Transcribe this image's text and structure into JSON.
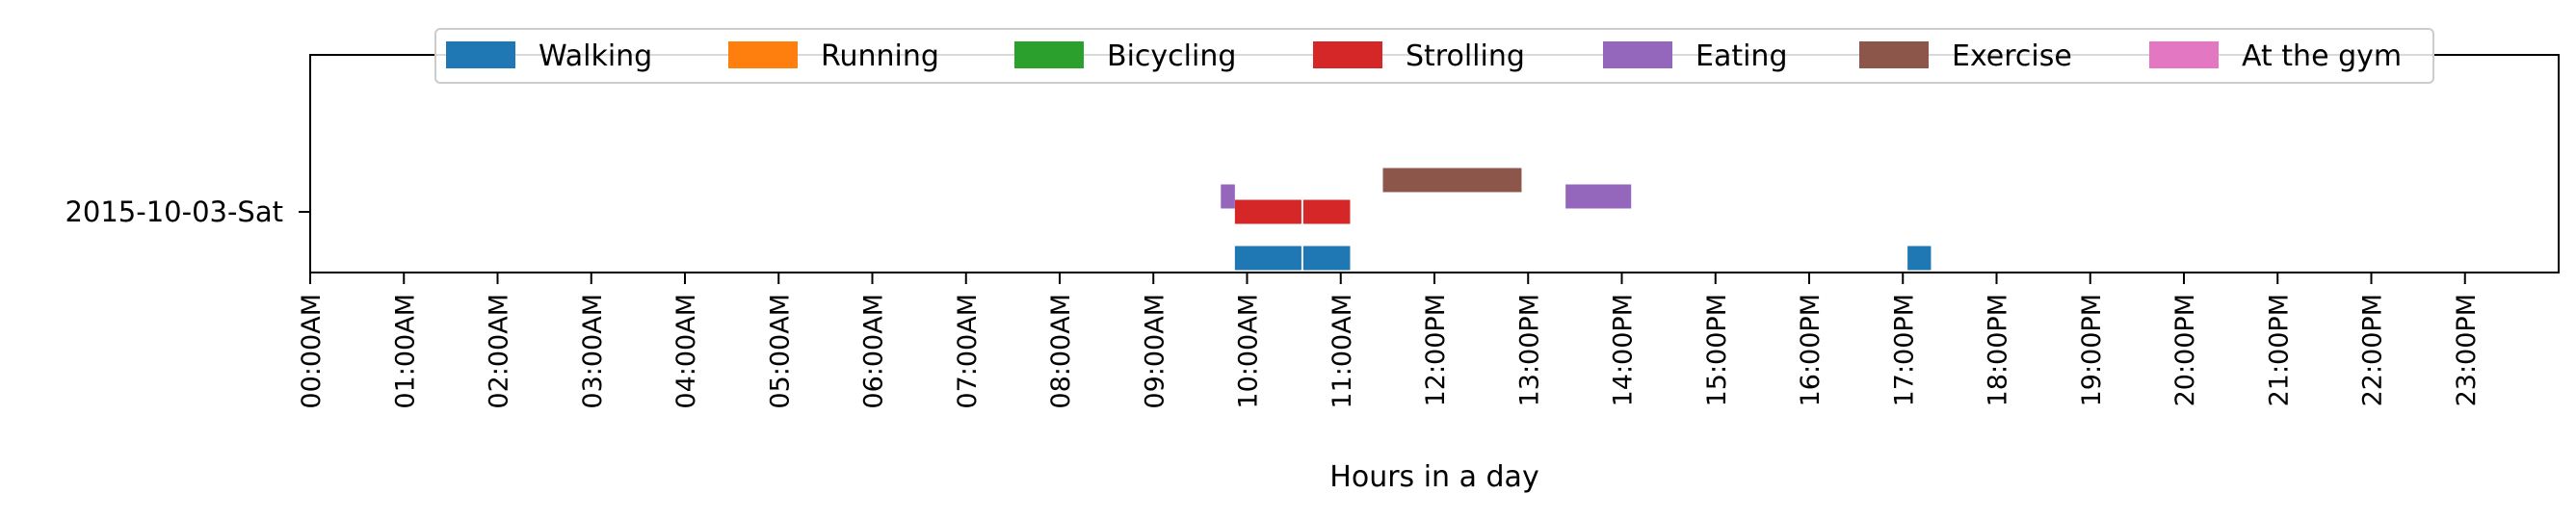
{
  "chart_data": {
    "type": "timeline",
    "xlabel": "Hours in a day",
    "xlim_hours": [
      0,
      24
    ],
    "x_tick_labels": [
      "00:00AM",
      "01:00AM",
      "02:00AM",
      "03:00AM",
      "04:00AM",
      "05:00AM",
      "06:00AM",
      "07:00AM",
      "08:00AM",
      "09:00AM",
      "10:00AM",
      "11:00AM",
      "12:00PM",
      "13:00PM",
      "14:00PM",
      "15:00PM",
      "16:00PM",
      "17:00PM",
      "18:00PM",
      "19:00PM",
      "20:00PM",
      "21:00PM",
      "22:00PM",
      "23:00PM"
    ],
    "y_categories": [
      "2015-10-03-Sat"
    ],
    "grid": false,
    "legend_position": "top-center",
    "series": [
      {
        "name": "Walking",
        "color": "#1f77b4",
        "intervals": [
          [
            9.87,
            10.58
          ],
          [
            10.6,
            11.1
          ],
          [
            17.05,
            17.3
          ]
        ]
      },
      {
        "name": "Running",
        "color": "#ff7f0e",
        "intervals": []
      },
      {
        "name": "Bicycling",
        "color": "#2ca02c",
        "intervals": []
      },
      {
        "name": "Strolling",
        "color": "#d62728",
        "intervals": [
          [
            9.87,
            10.58
          ],
          [
            10.6,
            11.1
          ]
        ]
      },
      {
        "name": "Eating",
        "color": "#9467bd",
        "intervals": [
          [
            9.72,
            9.87
          ],
          [
            13.4,
            14.1
          ]
        ]
      },
      {
        "name": "Exercise",
        "color": "#8c564b",
        "intervals": [
          [
            11.45,
            12.93
          ]
        ]
      },
      {
        "name": "At the gym",
        "color": "#e377c2",
        "intervals": []
      }
    ]
  }
}
